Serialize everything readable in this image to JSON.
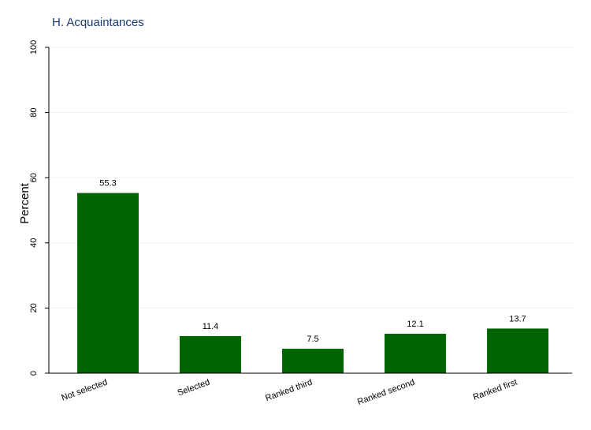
{
  "chart_data": {
    "type": "bar",
    "title": "H. Acquaintances",
    "ylabel": "Percent",
    "xlabel": "",
    "categories": [
      "Not selected",
      "Selected",
      "Ranked third",
      "Ranked second",
      "Ranked first"
    ],
    "values": [
      55.3,
      11.4,
      7.5,
      12.1,
      13.7
    ],
    "data_labels": [
      "55.3",
      "11.4",
      "7.5",
      "12.1",
      "13.7"
    ],
    "ylim": [
      0,
      100
    ],
    "yticks": [
      0,
      20,
      40,
      60,
      80,
      100
    ],
    "ytick_labels": [
      "0",
      "20",
      "40",
      "60",
      "80",
      "100"
    ],
    "grid": true,
    "bar_color": "#006400",
    "grid_color": "#eaf0f2"
  }
}
